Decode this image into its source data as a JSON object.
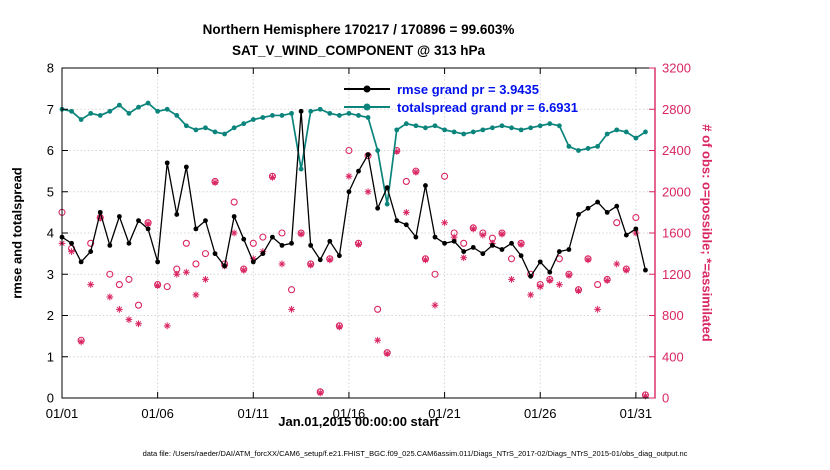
{
  "title": {
    "line1": "Northern Hemisphere 170217 / 170896 = 99.603%",
    "line2": "SAT_V_WIND_COMPONENT @ 313 hPa"
  },
  "axes": {
    "left_label": "rmse and totalspread",
    "right_label": "# of obs: o=possible; *=assimilated",
    "x_label": "Jan.01,2015 00:00:00 start",
    "left_ticks": [
      0,
      1,
      2,
      3,
      4,
      5,
      6,
      7,
      8
    ],
    "right_ticks": [
      0,
      400,
      800,
      1200,
      1600,
      2000,
      2400,
      2800,
      3200
    ],
    "x_ticks": [
      {
        "day": 1,
        "label": "01/01"
      },
      {
        "day": 6,
        "label": "01/06"
      },
      {
        "day": 11,
        "label": "01/11"
      },
      {
        "day": 16,
        "label": "01/16"
      },
      {
        "day": 21,
        "label": "01/21"
      },
      {
        "day": 26,
        "label": "01/26"
      },
      {
        "day": 31,
        "label": "01/31"
      }
    ]
  },
  "legend": {
    "items": [
      {
        "label": "rmse grand pr = 3.9435",
        "series": "rmse",
        "color": "#000000"
      },
      {
        "label": "totalspread grand pr = 6.6931",
        "series": "totalspread",
        "color": "#0b847c"
      }
    ]
  },
  "colors": {
    "rmse": "#000000",
    "totalspread": "#0b847c",
    "obs": "#d92662",
    "legend_text": "#0010ee",
    "grid": "#d4d4d4"
  },
  "footer": "data file: /Users/raeder/DAI/ATM_forcXX/CAM6_setup/f.e21.FHIST_BGC.f09_025.CAM6assim.011/Diags_NTrS_2017-02/Diags_NTrS_2015-01/obs_diag_output.nc",
  "chart_data": {
    "type": "line",
    "title": "Northern Hemisphere 170217 / 170896 = 99.603% | SAT_V_WIND_COMPONENT @ 313 hPa",
    "xlabel": "Jan.01,2015 00:00:00 start",
    "ylabel_left": "rmse and totalspread",
    "ylabel_right": "# of obs: o=possible; *=assimilated",
    "ylim_left": [
      0,
      8
    ],
    "ylim_right": [
      0,
      3200
    ],
    "x_range": [
      1,
      32
    ],
    "grid": true,
    "legend_position": "top-center-inside",
    "rmse_grand_mean": 3.9435,
    "totalspread_grand_mean": 6.6931,
    "obs_possible_total": 170896,
    "obs_assimilated_total": 170217,
    "obs_assimilated_pct": 99.603,
    "x": [
      1,
      1.5,
      2,
      2.5,
      3,
      3.5,
      4,
      4.5,
      5,
      5.5,
      6,
      6.5,
      7,
      7.5,
      8,
      8.5,
      9,
      9.5,
      10,
      10.5,
      11,
      11.5,
      12,
      12.5,
      13,
      13.5,
      14,
      14.5,
      15,
      15.5,
      16,
      16.5,
      17,
      17.5,
      18,
      18.5,
      19,
      19.5,
      20,
      20.5,
      21,
      21.5,
      22,
      22.5,
      23,
      23.5,
      24,
      24.5,
      25,
      25.5,
      26,
      26.5,
      27,
      27.5,
      28,
      28.5,
      29,
      29.5,
      30,
      30.5,
      31,
      31.5
    ],
    "series": [
      {
        "name": "rmse",
        "axis": "left",
        "marker": "filled-circle",
        "values": [
          3.9,
          3.75,
          3.3,
          3.55,
          4.5,
          3.7,
          4.4,
          3.75,
          4.3,
          4.1,
          3.3,
          5.7,
          4.45,
          5.6,
          4.1,
          4.3,
          3.5,
          3.2,
          4.4,
          3.85,
          3.3,
          3.5,
          3.9,
          3.7,
          3.75,
          6.95,
          3.7,
          3.35,
          3.8,
          3.45,
          5.0,
          5.5,
          5.9,
          4.6,
          5.1,
          4.3,
          4.2,
          3.9,
          5.15,
          3.9,
          3.75,
          3.8,
          3.55,
          3.65,
          3.5,
          3.7,
          3.6,
          3.75,
          3.45,
          2.95,
          3.3,
          3.05,
          3.55,
          3.6,
          4.45,
          4.6,
          4.75,
          4.5,
          4.65,
          3.95,
          4.1,
          3.1
        ]
      },
      {
        "name": "totalspread",
        "axis": "left",
        "marker": "filled-circle",
        "values": [
          7.0,
          6.95,
          6.75,
          6.9,
          6.85,
          6.95,
          7.1,
          6.9,
          7.05,
          7.15,
          6.95,
          7.0,
          6.85,
          6.6,
          6.5,
          6.55,
          6.45,
          6.4,
          6.55,
          6.65,
          6.75,
          6.8,
          6.85,
          6.85,
          6.9,
          5.55,
          6.95,
          7.0,
          6.9,
          6.85,
          6.9,
          6.85,
          6.8,
          6.0,
          4.7,
          6.5,
          6.65,
          6.6,
          6.55,
          6.6,
          6.5,
          6.45,
          6.4,
          6.45,
          6.5,
          6.55,
          6.6,
          6.55,
          6.5,
          6.55,
          6.6,
          6.65,
          6.6,
          6.1,
          6.0,
          6.05,
          6.1,
          6.4,
          6.5,
          6.45,
          6.3,
          6.45
        ]
      },
      {
        "name": "possible_obs",
        "axis": "right",
        "marker": "o",
        "values": [
          1800,
          1450,
          560,
          1500,
          1750,
          1200,
          1100,
          1150,
          900,
          1700,
          1100,
          1080,
          1250,
          1500,
          1300,
          1400,
          2100,
          1300,
          1900,
          1250,
          1500,
          1560,
          2150,
          1600,
          1050,
          1600,
          1300,
          60,
          1350,
          700,
          2400,
          1500,
          2350,
          860,
          440,
          2400,
          2100,
          2200,
          1350,
          1200,
          2150,
          1600,
          1500,
          1650,
          1600,
          1550,
          1600,
          1350,
          1500,
          1200,
          1100,
          1150,
          1350,
          1200,
          1050,
          1350,
          1100,
          1150,
          1700,
          1250,
          1750,
          30
        ]
      },
      {
        "name": "assimilated_obs",
        "axis": "right",
        "marker": "*",
        "values": [
          1500,
          1420,
          545,
          1100,
          1745,
          980,
          860,
          760,
          720,
          1690,
          1090,
          700,
          1200,
          1220,
          1000,
          1150,
          2090,
          1280,
          1600,
          1240,
          1350,
          1420,
          2140,
          1300,
          860,
          1590,
          1290,
          50,
          1340,
          690,
          2150,
          1490,
          2000,
          560,
          430,
          2390,
          1800,
          2190,
          1340,
          900,
          1700,
          1560,
          1360,
          1640,
          1580,
          1500,
          1590,
          1150,
          1490,
          1000,
          1080,
          1140,
          1100,
          1190,
          1040,
          1340,
          860,
          1140,
          1300,
          1240,
          1600,
          20
        ]
      }
    ]
  }
}
